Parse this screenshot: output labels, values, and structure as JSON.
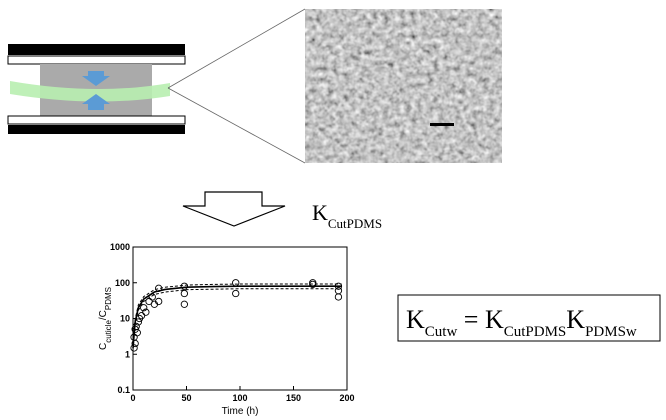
{
  "label_k": [
    {
      "text": "K",
      "sub": false
    },
    {
      "text": "CutPDMS",
      "sub": true
    }
  ],
  "equation": [
    {
      "text": "K",
      "sub": false
    },
    {
      "text": "Cutw",
      "sub": true
    },
    {
      "text": " = ",
      "sub": false
    },
    {
      "text": "K",
      "sub": false
    },
    {
      "text": "CutPDMS",
      "sub": true
    },
    {
      "text": "K",
      "sub": false
    },
    {
      "text": "PDMSw",
      "sub": true
    }
  ],
  "chart_data": {
    "type": "scatter",
    "xlabel": "Time (h)",
    "ylabel": [
      {
        "text": "C",
        "sub": false
      },
      {
        "text": "cuticle",
        "sub": true
      },
      {
        "text": "/C",
        "sub": false
      },
      {
        "text": "PDMS",
        "sub": true
      }
    ],
    "xlim": [
      0,
      200
    ],
    "xticks": [
      0,
      50,
      100,
      150,
      200
    ],
    "ylim": [
      0.1,
      1000
    ],
    "yticks": [
      0.1,
      1,
      10,
      100,
      1000
    ],
    "ylog": true,
    "points": {
      "color": "#000000",
      "x": [
        1,
        1,
        2,
        2,
        3,
        4,
        5,
        6,
        8,
        10,
        12,
        15,
        18,
        20,
        24,
        24,
        48,
        48,
        48,
        96,
        96,
        168,
        168,
        192,
        192,
        192
      ],
      "values": [
        1.5,
        3,
        2,
        5,
        6,
        4,
        8,
        10,
        12,
        20,
        15,
        30,
        40,
        25,
        70,
        30,
        80,
        50,
        25,
        100,
        50,
        100,
        90,
        60,
        40,
        80
      ]
    },
    "curves": [
      {
        "color": "#000000",
        "dashed": false,
        "x": [
          0,
          2,
          5,
          10,
          20,
          30,
          50,
          75,
          100,
          150,
          195
        ],
        "values": [
          1.5,
          8,
          20,
          35,
          55,
          65,
          75,
          78,
          80,
          80,
          80
        ]
      },
      {
        "color": "#000000",
        "dashed": true,
        "x": [
          0,
          2,
          5,
          10,
          20,
          30,
          50,
          75,
          100,
          150,
          195
        ],
        "values": [
          1.7,
          9.5,
          24,
          41,
          64,
          75,
          86,
          90,
          92,
          92,
          92
        ]
      },
      {
        "color": "#000000",
        "dashed": true,
        "x": [
          0,
          2,
          5,
          10,
          20,
          30,
          50,
          75,
          100,
          150,
          195
        ],
        "values": [
          1.3,
          6.8,
          17,
          30,
          47,
          55,
          64,
          66,
          68,
          68,
          68
        ]
      }
    ]
  }
}
